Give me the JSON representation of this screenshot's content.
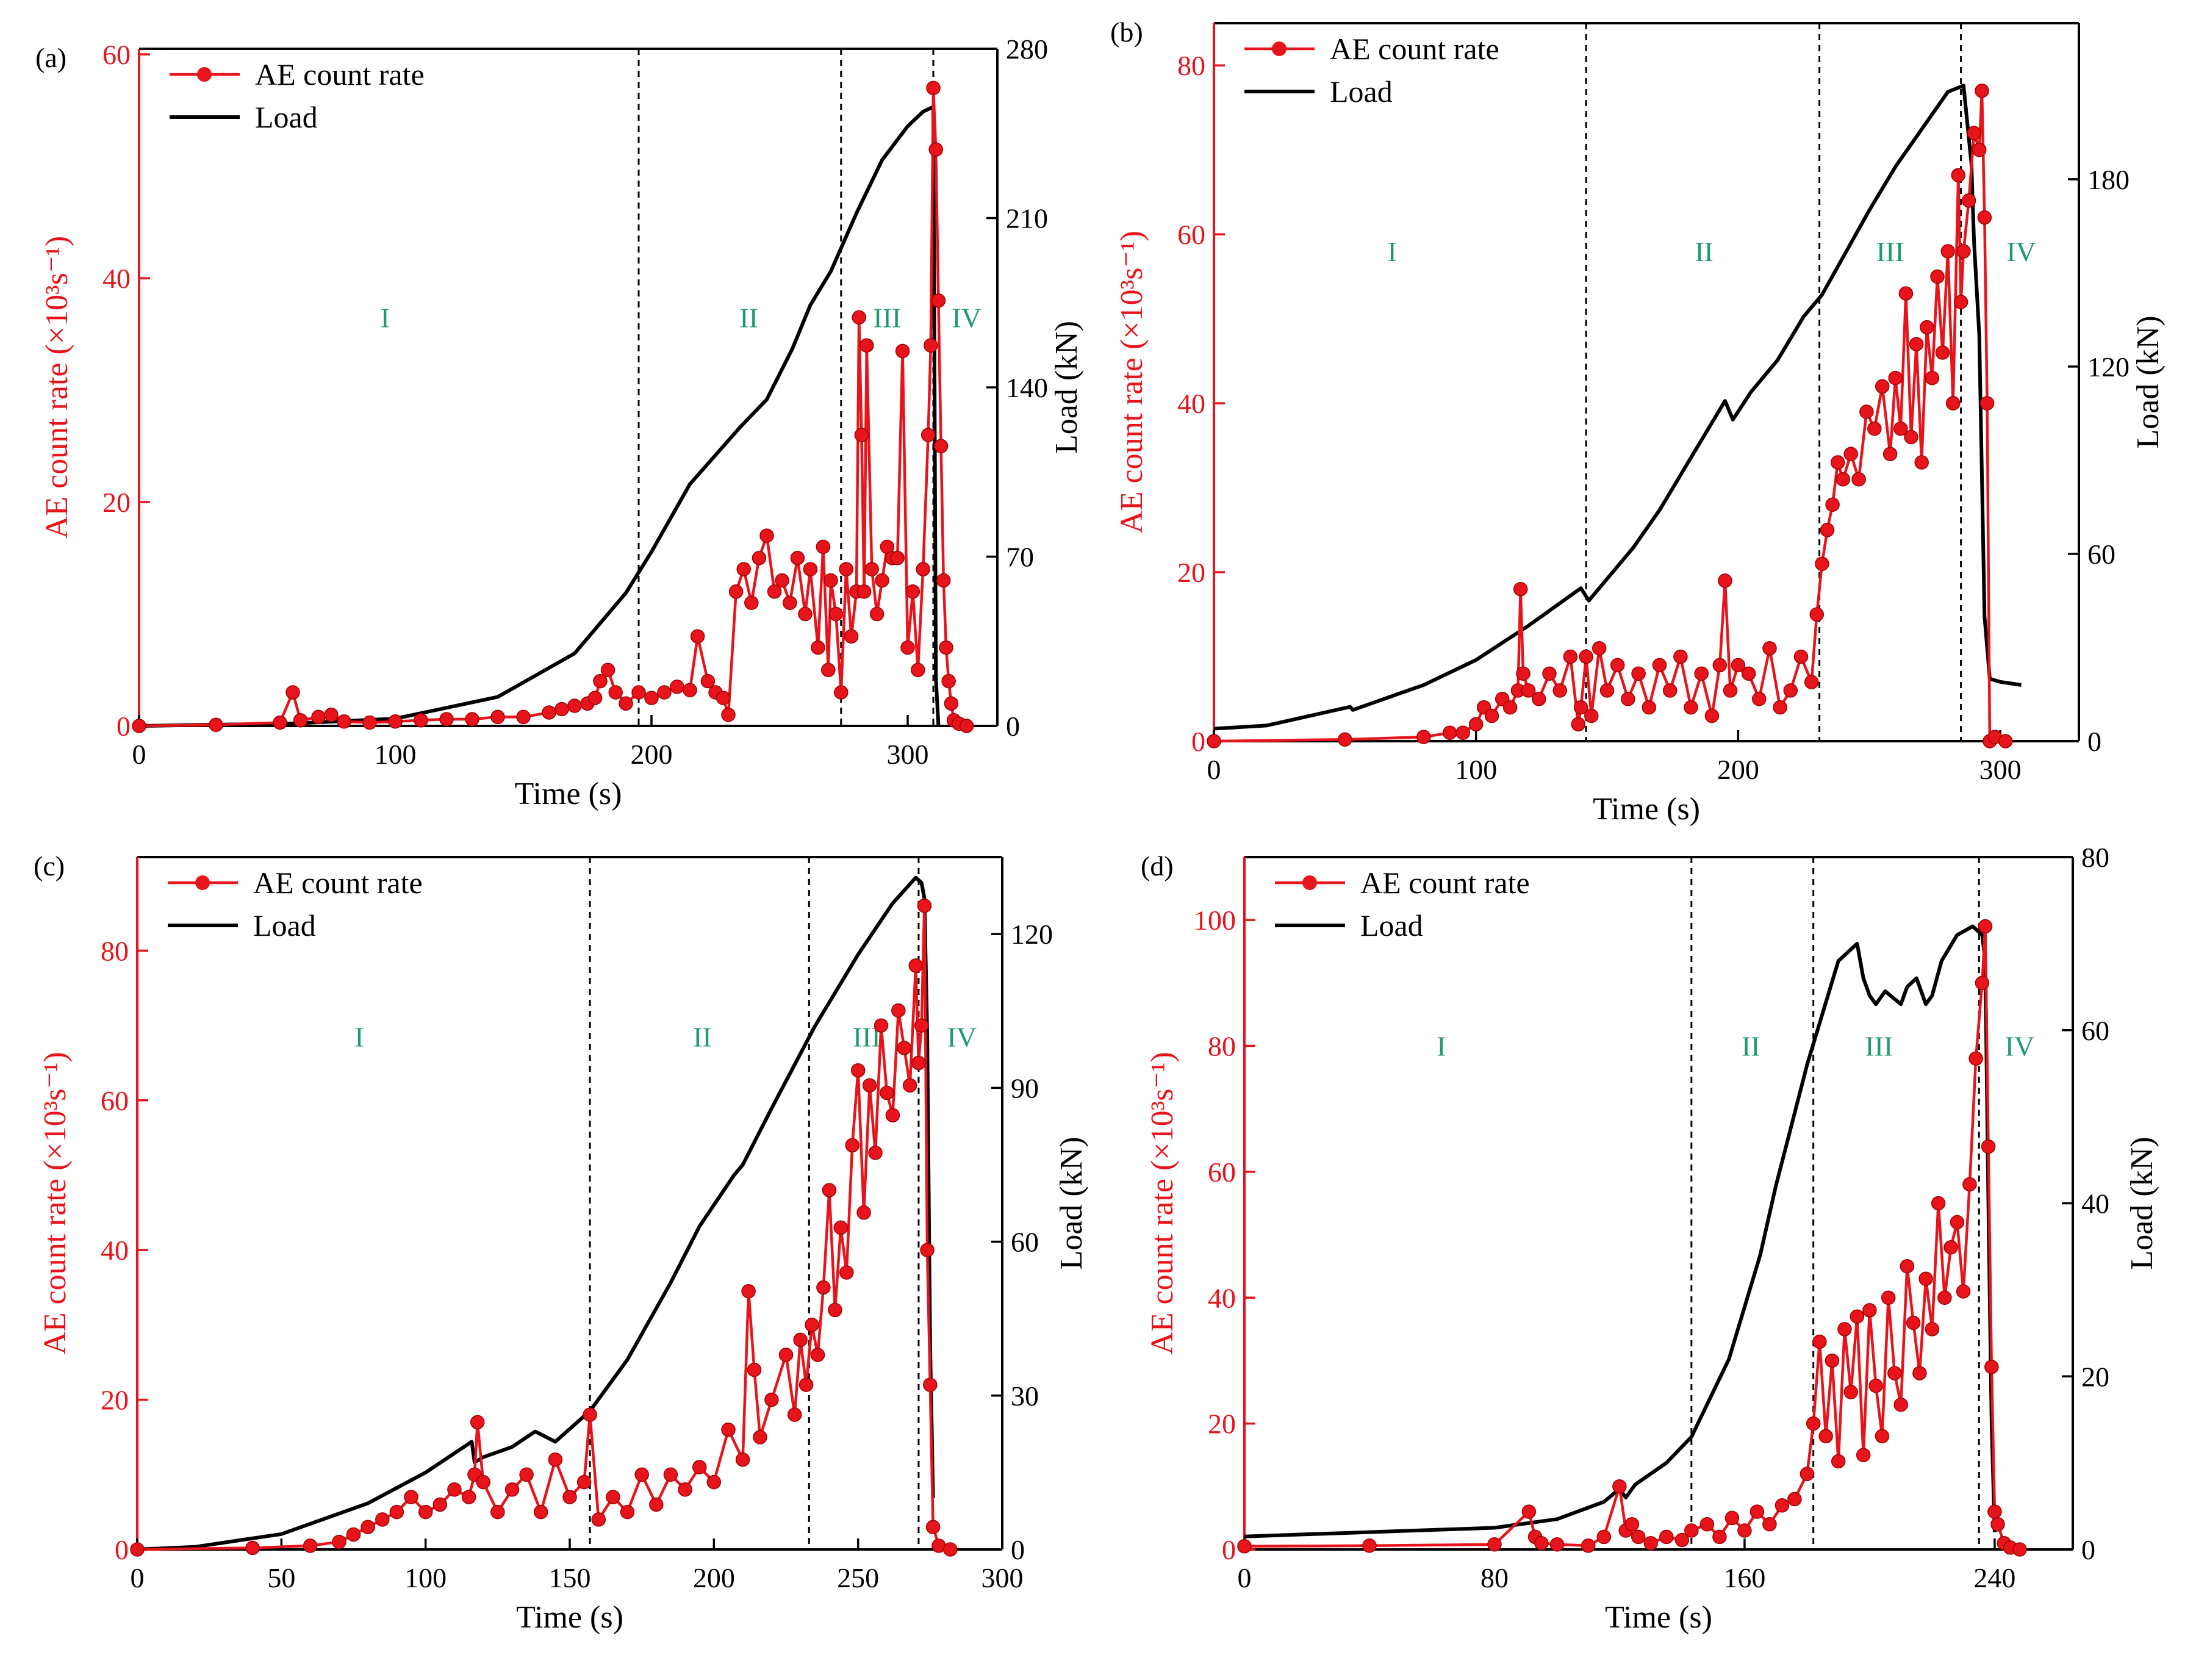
{
  "colors": {
    "ae": "#e8141b",
    "load": "#000000",
    "stage": "#1f9a6a",
    "axis": "#000000"
  },
  "chart_data": [
    {
      "type": "line",
      "panel_label": "(a)",
      "xlabel": "Time (s)",
      "ylabel_left": "AE count rate (×10³s⁻¹)",
      "ylabel_right": "Load (kN)",
      "xlim": [
        0,
        335
      ],
      "ylim_left": [
        0,
        60.5
      ],
      "ylim_right": [
        0,
        280
      ],
      "xticks": [
        0,
        100,
        200,
        300
      ],
      "yticks_left": [
        0,
        20,
        40,
        60
      ],
      "yticks_right": [
        0,
        70,
        140,
        210,
        280
      ],
      "vlines": [
        195,
        274,
        310
      ],
      "stages": [
        {
          "label": "I",
          "x": 96,
          "y": 36.5
        },
        {
          "label": "II",
          "x": 238,
          "y": 36.5
        },
        {
          "label": "III",
          "x": 292,
          "y": 36.5
        },
        {
          "label": "IV",
          "x": 323,
          "y": 36.5
        }
      ],
      "legend": [
        "AE count rate",
        "Load"
      ],
      "series": [
        {
          "name": "Load",
          "axis": "right",
          "x": [
            0,
            60,
            100,
            140,
            170,
            190,
            200,
            215,
            230,
            235,
            245,
            255,
            262,
            270,
            280,
            290,
            300,
            306,
            310,
            311,
            312
          ],
          "y": [
            0,
            1,
            3,
            12,
            30,
            55,
            72,
            100,
            118,
            124,
            135,
            156,
            174,
            188,
            212,
            234,
            248,
            254,
            256,
            20,
            0
          ]
        },
        {
          "name": "AE count rate",
          "axis": "left",
          "x": [
            0,
            30,
            55,
            60,
            63,
            70,
            75,
            80,
            90,
            100,
            110,
            120,
            130,
            140,
            150,
            160,
            165,
            170,
            175,
            178,
            180,
            183,
            186,
            190,
            195,
            200,
            205,
            210,
            215,
            218,
            222,
            225,
            228,
            230,
            233,
            236,
            239,
            242,
            245,
            248,
            251,
            254,
            257,
            260,
            262,
            265,
            267,
            269,
            270,
            272,
            274,
            276,
            278,
            280,
            281,
            282,
            283,
            284,
            286,
            288,
            290,
            292,
            294,
            296,
            298,
            300,
            302,
            304,
            306,
            308,
            309,
            310,
            311,
            312,
            313,
            314,
            315,
            316,
            317,
            318,
            320,
            323
          ],
          "y": [
            0,
            0.1,
            0.3,
            3,
            0.5,
            0.8,
            1,
            0.4,
            0.3,
            0.4,
            0.5,
            0.6,
            0.6,
            0.8,
            0.8,
            1.2,
            1.5,
            1.8,
            2,
            2.5,
            4,
            5,
            3,
            2,
            3,
            2.5,
            3,
            3.5,
            3.2,
            8,
            4,
            3,
            2.5,
            1,
            12,
            14,
            11,
            15,
            17,
            12,
            13,
            11,
            15,
            10,
            14,
            7,
            16,
            5,
            13,
            10,
            3,
            14,
            8,
            12,
            36.5,
            26,
            12,
            34,
            14,
            10,
            13,
            16,
            15,
            15,
            33.5,
            7,
            12,
            5,
            14,
            26,
            34,
            57,
            51.5,
            38,
            25,
            13,
            7,
            4,
            2,
            0.5,
            0.2,
            0
          ]
        }
      ]
    },
    {
      "type": "line",
      "panel_label": "(b)",
      "xlabel": "Time (s)",
      "ylabel_left": "AE count rate (×10³s⁻¹)",
      "ylabel_right": "Load (kN)",
      "xlim": [
        0,
        330
      ],
      "ylim_left": [
        0,
        85
      ],
      "ylim_right": [
        0,
        230
      ],
      "xticks": [
        0,
        100,
        200,
        300
      ],
      "yticks_left": [
        0,
        20,
        40,
        60,
        80
      ],
      "yticks_right": [
        0,
        60,
        120,
        180
      ],
      "vlines": [
        142,
        231,
        285
      ],
      "stages": [
        {
          "label": "I",
          "x": 68,
          "y": 58
        },
        {
          "label": "II",
          "x": 187,
          "y": 58
        },
        {
          "label": "III",
          "x": 258,
          "y": 58
        },
        {
          "label": "IV",
          "x": 308,
          "y": 58
        }
      ],
      "legend": [
        "AE count rate",
        "Load"
      ],
      "series": [
        {
          "name": "Load",
          "axis": "right",
          "x": [
            0,
            20,
            52,
            53,
            80,
            100,
            120,
            140,
            143,
            150,
            160,
            170,
            185,
            195,
            198,
            205,
            215,
            225,
            232,
            240,
            250,
            260,
            270,
            280,
            286,
            289,
            290,
            292,
            294,
            296,
            300,
            308
          ],
          "y": [
            4,
            5,
            11,
            10,
            18,
            26,
            37,
            49,
            45,
            52,
            62,
            74,
            95,
            109,
            103,
            112,
            122,
            136,
            143,
            155,
            170,
            184,
            196,
            208,
            210,
            185,
            160,
            130,
            40,
            20,
            19,
            18
          ]
        },
        {
          "name": "AE count rate",
          "axis": "left",
          "x": [
            0,
            50,
            80,
            90,
            95,
            100,
            103,
            106,
            110,
            113,
            116,
            117,
            118,
            120,
            124,
            128,
            132,
            136,
            139,
            140,
            142,
            144,
            147,
            150,
            154,
            158,
            162,
            166,
            170,
            174,
            178,
            182,
            186,
            190,
            193,
            195,
            197,
            200,
            204,
            208,
            212,
            216,
            220,
            224,
            228,
            230,
            232,
            234,
            236,
            238,
            240,
            243,
            246,
            249,
            252,
            255,
            258,
            260,
            262,
            264,
            266,
            268,
            270,
            272,
            274,
            276,
            278,
            280,
            282,
            284,
            285,
            286,
            288,
            290,
            292,
            293,
            294,
            295,
            296,
            298,
            302
          ],
          "y": [
            0,
            0.2,
            0.5,
            1,
            1,
            2,
            4,
            3,
            5,
            4,
            6,
            18,
            8,
            6,
            5,
            8,
            6,
            10,
            2,
            4,
            10,
            3,
            11,
            6,
            9,
            5,
            8,
            4,
            9,
            6,
            10,
            4,
            8,
            3,
            9,
            19,
            6,
            9,
            8,
            5,
            11,
            4,
            6,
            10,
            7,
            15,
            21,
            25,
            28,
            33,
            31,
            34,
            31,
            39,
            37,
            42,
            34,
            43,
            37,
            53,
            36,
            47,
            33,
            49,
            43,
            55,
            46,
            58,
            40,
            67,
            52,
            58,
            64,
            72,
            70,
            77,
            62,
            40,
            0,
            0.5,
            0
          ]
        }
      ]
    },
    {
      "type": "line",
      "panel_label": "(c)",
      "xlabel": "Time (s)",
      "ylabel_left": "AE count rate (×10³s⁻¹)",
      "ylabel_right": "Load (kN)",
      "xlim": [
        0,
        300
      ],
      "ylim_left": [
        0,
        92.5
      ],
      "ylim_right": [
        0,
        135
      ],
      "xticks": [
        0,
        50,
        100,
        150,
        200,
        250,
        300
      ],
      "yticks_left": [
        0,
        20,
        40,
        60,
        80
      ],
      "yticks_right": [
        0,
        30,
        60,
        90,
        120
      ],
      "vlines": [
        157,
        233,
        271
      ],
      "stages": [
        {
          "label": "I",
          "x": 77,
          "y": 68.5
        },
        {
          "label": "II",
          "x": 196,
          "y": 68.5
        },
        {
          "label": "III",
          "x": 253,
          "y": 68.5
        },
        {
          "label": "IV",
          "x": 286,
          "y": 68.5
        }
      ],
      "legend": [
        "AE count rate",
        "Load"
      ],
      "series": [
        {
          "name": "Load",
          "axis": "right",
          "x": [
            0,
            20,
            50,
            80,
            100,
            116,
            117,
            120,
            130,
            138,
            145,
            157,
            170,
            185,
            195,
            207,
            210,
            220,
            235,
            250,
            262,
            270,
            272,
            273,
            274,
            275,
            276
          ],
          "y": [
            0,
            0.5,
            3,
            9,
            15,
            21,
            17,
            18,
            20,
            23,
            21,
            27,
            37,
            52,
            63,
            73,
            75,
            86,
            102,
            116,
            126,
            131,
            130,
            127,
            100,
            40,
            10
          ]
        },
        {
          "name": "AE count rate",
          "axis": "left",
          "x": [
            0,
            40,
            60,
            70,
            75,
            80,
            85,
            90,
            95,
            100,
            105,
            110,
            115,
            117,
            118,
            120,
            125,
            130,
            135,
            140,
            145,
            150,
            155,
            157,
            160,
            165,
            170,
            175,
            180,
            185,
            190,
            195,
            200,
            205,
            210,
            212,
            214,
            216,
            220,
            225,
            228,
            230,
            232,
            234,
            236,
            238,
            240,
            242,
            244,
            246,
            248,
            250,
            252,
            254,
            256,
            258,
            260,
            262,
            264,
            266,
            268,
            270,
            271,
            272,
            273,
            274,
            275,
            276,
            278,
            282
          ],
          "y": [
            0,
            0.2,
            0.5,
            1,
            2,
            3,
            4,
            5,
            7,
            5,
            6,
            8,
            7,
            10,
            17,
            9,
            5,
            8,
            10,
            5,
            12,
            7,
            9,
            18,
            4,
            7,
            5,
            10,
            6,
            10,
            8,
            11,
            9,
            16,
            12,
            34.5,
            24,
            15,
            20,
            26,
            18,
            28,
            22,
            30,
            26,
            35,
            48,
            32,
            43,
            37,
            54,
            64,
            45,
            62,
            53,
            70,
            61,
            58,
            72,
            67,
            62,
            78,
            65,
            70,
            86,
            40,
            22,
            3,
            0.5,
            0
          ]
        }
      ]
    },
    {
      "type": "line",
      "panel_label": "(d)",
      "xlabel": "Time (s)",
      "ylabel_left": "AE count rate (×10³s⁻¹)",
      "ylabel_right": "Load (kN)",
      "xlim": [
        0,
        265
      ],
      "ylim_left": [
        0,
        110
      ],
      "ylim_right": [
        0,
        80
      ],
      "xticks": [
        0,
        80,
        160,
        240
      ],
      "yticks_left": [
        0,
        20,
        40,
        60,
        80,
        100
      ],
      "yticks_right": [
        0,
        20,
        40,
        60,
        80
      ],
      "vlines": [
        143,
        182,
        235
      ],
      "stages": [
        {
          "label": "I",
          "x": 63,
          "y": 80
        },
        {
          "label": "II",
          "x": 162,
          "y": 80
        },
        {
          "label": "III",
          "x": 203,
          "y": 80
        },
        {
          "label": "IV",
          "x": 248,
          "y": 80
        }
      ],
      "legend": [
        "AE count rate",
        "Load"
      ],
      "series": [
        {
          "name": "Load",
          "axis": "right",
          "x": [
            0,
            40,
            80,
            100,
            115,
            120,
            122,
            125,
            135,
            143,
            155,
            165,
            170,
            180,
            190,
            196,
            198,
            200,
            202,
            205,
            210,
            212,
            215,
            218,
            220,
            223,
            228,
            233,
            236,
            237,
            238,
            239,
            240
          ],
          "y": [
            1.5,
            2,
            2.5,
            3.5,
            5.5,
            7,
            6,
            7.5,
            10,
            13,
            22,
            34,
            42,
            56,
            68,
            70,
            66,
            64,
            63,
            64.5,
            63,
            65,
            66,
            63,
            64,
            68,
            71,
            72,
            71,
            68,
            40,
            15,
            2
          ]
        },
        {
          "name": "AE count rate",
          "axis": "left",
          "x": [
            0,
            40,
            80,
            91,
            93,
            95,
            100,
            110,
            115,
            120,
            122,
            124,
            126,
            130,
            135,
            140,
            143,
            148,
            152,
            156,
            160,
            164,
            168,
            172,
            176,
            180,
            182,
            184,
            186,
            188,
            190,
            192,
            194,
            196,
            198,
            200,
            202,
            204,
            206,
            208,
            210,
            212,
            214,
            216,
            218,
            220,
            222,
            224,
            226,
            228,
            230,
            232,
            234,
            236,
            237,
            238,
            239,
            240,
            241,
            243,
            245,
            248
          ],
          "y": [
            0.5,
            0.6,
            0.8,
            6,
            2,
            1,
            0.8,
            0.6,
            2,
            10,
            3,
            4,
            2,
            1,
            2,
            1.5,
            3,
            4,
            2,
            5,
            3,
            6,
            4,
            7,
            8,
            12,
            20,
            33,
            18,
            30,
            14,
            35,
            25,
            37,
            15,
            38,
            26,
            18,
            40,
            28,
            23,
            45,
            36,
            28,
            43,
            35,
            55,
            40,
            48,
            52,
            41,
            58,
            78,
            90,
            99,
            64,
            29,
            6,
            4,
            1,
            0.3,
            0
          ]
        }
      ]
    }
  ]
}
